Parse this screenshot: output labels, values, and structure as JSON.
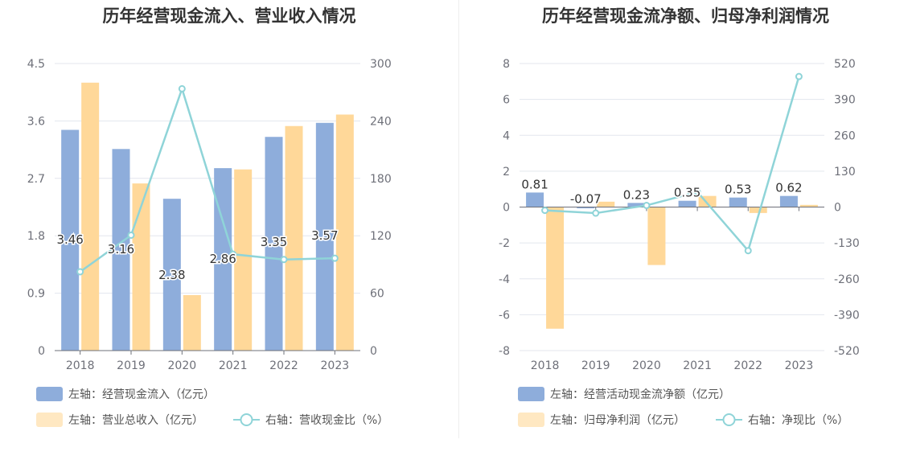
{
  "chart_data": [
    {
      "type": "bar",
      "title": "历年经营现金流入、营业收入情况",
      "categories": [
        "2018",
        "2019",
        "2020",
        "2021",
        "2022",
        "2023"
      ],
      "y_left": {
        "ticks": [
          "0",
          "0.9",
          "1.8",
          "2.7",
          "3.6",
          "4.5"
        ],
        "ylim": [
          0,
          4.5
        ]
      },
      "y_right": {
        "ticks": [
          "0",
          "60",
          "120",
          "180",
          "240",
          "300"
        ],
        "ylim": [
          0,
          300
        ]
      },
      "series": [
        {
          "name": "左轴：经营现金流入（亿元）",
          "type": "bar",
          "axis": "left",
          "color": "#8eaddb",
          "values": [
            3.46,
            3.16,
            2.38,
            2.86,
            3.35,
            3.57
          ],
          "labels": [
            "3.46",
            "3.16",
            "2.38",
            "2.86",
            "3.35",
            "3.57"
          ]
        },
        {
          "name": "左轴：营业总收入（亿元）",
          "type": "bar",
          "axis": "left",
          "color": "#ffd899",
          "values": [
            4.2,
            2.62,
            0.87,
            2.84,
            3.52,
            3.7
          ]
        },
        {
          "name": "右轴：营收现金比（%）",
          "type": "line",
          "axis": "right",
          "color": "#8fd4d8",
          "values": [
            82.4,
            120.6,
            273.6,
            100.7,
            95.2,
            96.5
          ]
        }
      ],
      "grid": true
    },
    {
      "type": "bar",
      "title": "历年经营现金流净额、归母净利润情况",
      "categories": [
        "2018",
        "2019",
        "2020",
        "2021",
        "2022",
        "2023"
      ],
      "y_left": {
        "ticks": [
          "-8",
          "-6",
          "-4",
          "-2",
          "0",
          "2",
          "4",
          "6",
          "8"
        ],
        "ylim": [
          -8,
          8
        ]
      },
      "y_right": {
        "ticks": [
          "-520",
          "-390",
          "-260",
          "-130",
          "0",
          "130",
          "260",
          "390",
          "520"
        ],
        "ylim": [
          -520,
          520
        ]
      },
      "series": [
        {
          "name": "左轴：经营活动现金流净额（亿元）",
          "type": "bar",
          "axis": "left",
          "color": "#8eaddb",
          "values": [
            0.81,
            -0.07,
            0.23,
            0.35,
            0.53,
            0.62
          ],
          "labels": [
            "0.81",
            "-0.07",
            "0.23",
            "0.35",
            "0.53",
            "0.62"
          ]
        },
        {
          "name": "左轴：归母净利润（亿元）",
          "type": "bar",
          "axis": "left",
          "color": "#ffd899",
          "values": [
            -6.78,
            0.3,
            -3.23,
            0.62,
            -0.33,
            0.12
          ]
        },
        {
          "name": "右轴：净现比（%）",
          "type": "line",
          "axis": "right",
          "color": "#8fd4d8",
          "values": [
            -12,
            -22,
            6,
            55,
            -158,
            473
          ]
        }
      ],
      "grid": true
    }
  ]
}
